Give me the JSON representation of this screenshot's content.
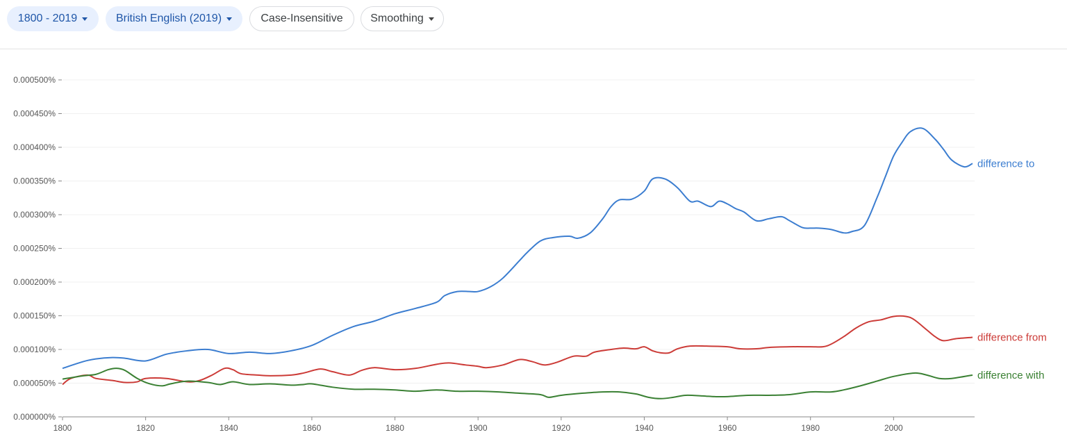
{
  "toolbar": {
    "year_range": "1800 - 2019",
    "corpus": "British English (2019)",
    "case": "Case-Insensitive",
    "smoothing": "Smoothing"
  },
  "chart_data": {
    "type": "line",
    "title": "",
    "xlabel": "",
    "ylabel": "",
    "xlim": [
      1800,
      2019
    ],
    "ylim": [
      0,
      0.0005
    ],
    "x_ticks": [
      "1800",
      "1820",
      "1840",
      "1860",
      "1880",
      "1900",
      "1920",
      "1940",
      "1960",
      "1980",
      "2000"
    ],
    "y_ticks": [
      "0.000000%",
      "0.000050%",
      "0.000100%",
      "0.000150%",
      "0.000200%",
      "0.000250%",
      "0.000300%",
      "0.000350%",
      "0.000400%",
      "0.000450%",
      "0.000500%"
    ],
    "grid": true,
    "legend": "right-end labels",
    "series": [
      {
        "name": "difference to",
        "color": "#3b7dd0",
        "x": [
          1800,
          1805,
          1808,
          1812,
          1815,
          1820,
          1825,
          1830,
          1835,
          1840,
          1845,
          1850,
          1855,
          1860,
          1865,
          1870,
          1875,
          1880,
          1885,
          1890,
          1892,
          1895,
          1898,
          1900,
          1903,
          1906,
          1910,
          1912,
          1915,
          1918,
          1922,
          1924,
          1927,
          1930,
          1932,
          1934,
          1937,
          1940,
          1942,
          1945,
          1948,
          1951,
          1953,
          1956,
          1958,
          1960,
          1962,
          1964,
          1967,
          1970,
          1973,
          1975,
          1978,
          1980,
          1982,
          1985,
          1988,
          1990,
          1993,
          1996,
          1998,
          2000,
          2002,
          2004,
          2007,
          2010,
          2012,
          2014,
          2017,
          2019
        ],
        "y": [
          7.2e-05,
          8.2e-05,
          8.6e-05,
          8.8e-05,
          8.7e-05,
          8.3e-05,
          9.3e-05,
          9.8e-05,
          0.0001,
          9.4e-05,
          9.6e-05,
          9.4e-05,
          9.8e-05,
          0.000106,
          0.000121,
          0.000134,
          0.000142,
          0.000153,
          0.000161,
          0.00017,
          0.00018,
          0.000186,
          0.000186,
          0.000186,
          0.000193,
          0.000206,
          0.000232,
          0.000245,
          0.000261,
          0.000266,
          0.000268,
          0.000265,
          0.000273,
          0.000294,
          0.000312,
          0.000322,
          0.000323,
          0.000335,
          0.000353,
          0.000353,
          0.00034,
          0.00032,
          0.00032,
          0.000312,
          0.00032,
          0.000316,
          0.000309,
          0.000304,
          0.000291,
          0.000294,
          0.000297,
          0.000291,
          0.000281,
          0.00028,
          0.00028,
          0.000278,
          0.000273,
          0.000275,
          0.000284,
          0.000325,
          0.000356,
          0.000387,
          0.000407,
          0.000423,
          0.000428,
          0.000412,
          0.000397,
          0.000381,
          0.000371,
          0.000376
        ]
      },
      {
        "name": "difference from",
        "color": "#cc3b37",
        "x": [
          1800,
          1802,
          1806,
          1808,
          1812,
          1815,
          1818,
          1820,
          1825,
          1830,
          1833,
          1836,
          1839,
          1841,
          1843,
          1847,
          1850,
          1855,
          1858,
          1862,
          1865,
          1869,
          1872,
          1875,
          1880,
          1885,
          1890,
          1893,
          1897,
          1900,
          1902,
          1906,
          1910,
          1913,
          1916,
          1919,
          1923,
          1926,
          1928,
          1932,
          1935,
          1938,
          1940,
          1942,
          1944,
          1946,
          1948,
          1951,
          1955,
          1960,
          1963,
          1967,
          1970,
          1975,
          1980,
          1983,
          1985,
          1988,
          1991,
          1994,
          1997,
          2000,
          2003,
          2005,
          2008,
          2010,
          2012,
          2015,
          2019
        ],
        "y": [
          4.8e-05,
          5.7e-05,
          6.2e-05,
          5.7e-05,
          5.4e-05,
          5.1e-05,
          5.2e-05,
          5.7e-05,
          5.7e-05,
          5.2e-05,
          5.4e-05,
          6.2e-05,
          7.2e-05,
          7e-05,
          6.4e-05,
          6.2e-05,
          6.1e-05,
          6.2e-05,
          6.5e-05,
          7.1e-05,
          6.7e-05,
          6.2e-05,
          6.9e-05,
          7.3e-05,
          7e-05,
          7.2e-05,
          7.8e-05,
          8e-05,
          7.7e-05,
          7.5e-05,
          7.3e-05,
          7.7e-05,
          8.5e-05,
          8.2e-05,
          7.7e-05,
          8.1e-05,
          9e-05,
          9e-05,
          9.6e-05,
          0.0001,
          0.000102,
          0.000101,
          0.000104,
          9.8e-05,
          9.5e-05,
          9.5e-05,
          0.000101,
          0.000105,
          0.000105,
          0.000104,
          0.000101,
          0.000101,
          0.000103,
          0.000104,
          0.000104,
          0.000104,
          0.000108,
          0.000119,
          0.000132,
          0.000141,
          0.000144,
          0.000149,
          0.000149,
          0.000144,
          0.000129,
          0.000119,
          0.000113,
          0.000116,
          0.000118
        ]
      },
      {
        "name": "difference with",
        "color": "#3a8033",
        "x": [
          1800,
          1805,
          1808,
          1811,
          1813,
          1815,
          1818,
          1821,
          1824,
          1826,
          1830,
          1835,
          1838,
          1841,
          1845,
          1850,
          1855,
          1858,
          1860,
          1865,
          1870,
          1875,
          1880,
          1885,
          1890,
          1895,
          1900,
          1905,
          1910,
          1915,
          1917,
          1920,
          1925,
          1930,
          1934,
          1938,
          1941,
          1944,
          1947,
          1950,
          1954,
          1957,
          1960,
          1965,
          1970,
          1975,
          1980,
          1985,
          1988,
          1992,
          1996,
          2000,
          2005,
          2008,
          2011,
          2014,
          2019
        ],
        "y": [
          5.6e-05,
          6.1e-05,
          6.3e-05,
          7e-05,
          7.2e-05,
          6.9e-05,
          5.7e-05,
          4.9e-05,
          4.6e-05,
          4.9e-05,
          5.3e-05,
          5.1e-05,
          4.8e-05,
          5.2e-05,
          4.8e-05,
          4.9e-05,
          4.7e-05,
          4.8e-05,
          4.9e-05,
          4.4e-05,
          4.1e-05,
          4.1e-05,
          4e-05,
          3.8e-05,
          4e-05,
          3.8e-05,
          3.8e-05,
          3.7e-05,
          3.5e-05,
          3.3e-05,
          2.9e-05,
          3.2e-05,
          3.5e-05,
          3.7e-05,
          3.7e-05,
          3.4e-05,
          2.9e-05,
          2.7e-05,
          2.9e-05,
          3.2e-05,
          3.1e-05,
          3e-05,
          3e-05,
          3.2e-05,
          3.2e-05,
          3.3e-05,
          3.7e-05,
          3.7e-05,
          4e-05,
          4.6e-05,
          5.3e-05,
          6e-05,
          6.5e-05,
          6.2e-05,
          5.7e-05,
          5.7e-05,
          6.2e-05
        ]
      }
    ]
  }
}
